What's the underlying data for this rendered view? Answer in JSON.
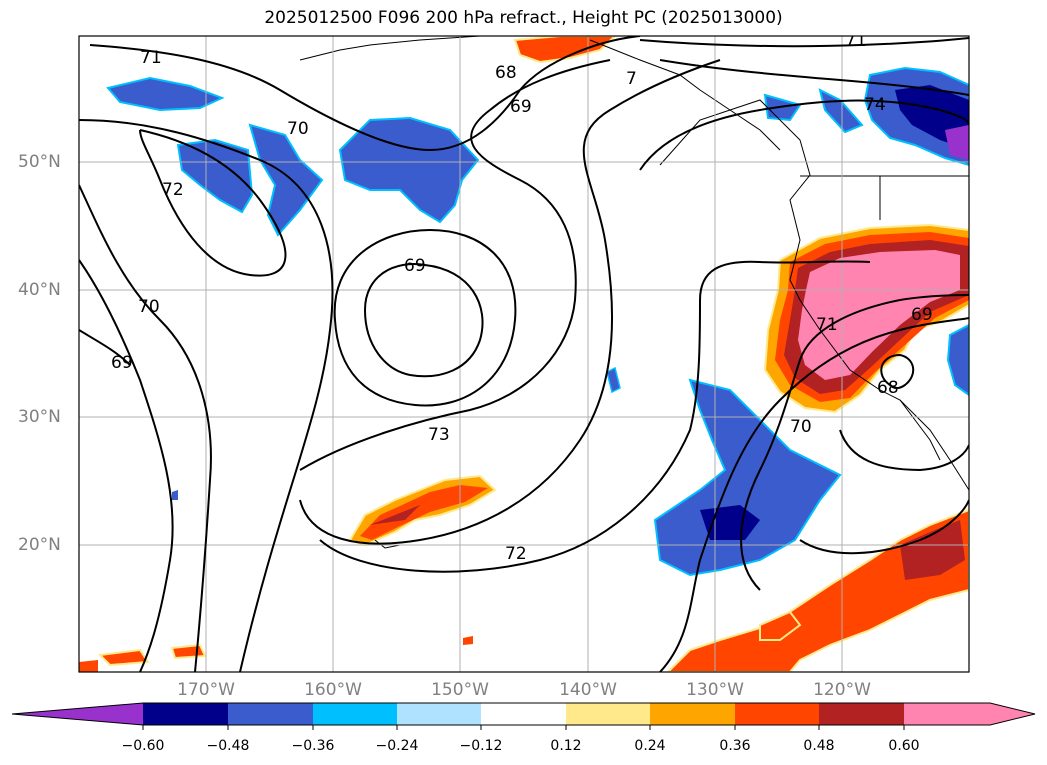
{
  "title": "2025012500 F096 200 hPa refract., Height PC (2025013000)",
  "map": {
    "lon_labels": [
      "170°W",
      "160°W",
      "150°W",
      "140°W",
      "130°W",
      "120°W"
    ],
    "lat_labels": [
      "50°N",
      "40°N",
      "30°N",
      "20°N"
    ],
    "contour_labels": [
      "71",
      "70",
      "72",
      "68",
      "69",
      "7",
      "71",
      "74",
      "69",
      "70",
      "69",
      "73",
      "72",
      "70",
      "71",
      "69",
      "68"
    ]
  },
  "colorbar": {
    "ticks": [
      "−0.60",
      "−0.48",
      "−0.36",
      "−0.24",
      "−0.12",
      "0.12",
      "0.24",
      "0.36",
      "0.48",
      "0.60"
    ],
    "colors": [
      "#9932cc",
      "#00008b",
      "#3a5ccc",
      "#00bfff",
      "#aee2ff",
      "#ffffff",
      "#ffe98a",
      "#ffa500",
      "#ff4500",
      "#b22222",
      "#ff85b0"
    ]
  }
}
